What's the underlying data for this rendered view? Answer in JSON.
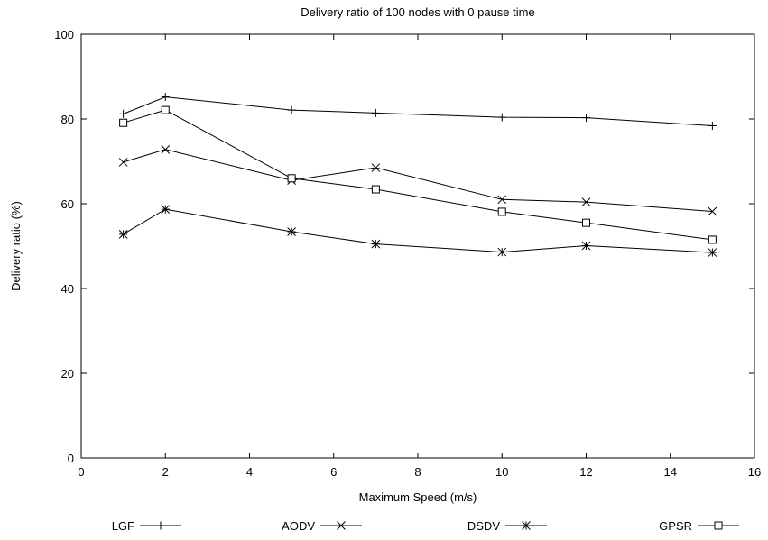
{
  "chart_data": {
    "type": "line",
    "title": "Delivery ratio of 100 nodes with 0 pause time",
    "xlabel": "Maximum Speed (m/s)",
    "ylabel": "Delivery ratio (%)",
    "xlim": [
      0,
      16
    ],
    "ylim": [
      0,
      100
    ],
    "xticks": [
      0,
      2,
      4,
      6,
      8,
      10,
      12,
      14,
      16
    ],
    "yticks": [
      0,
      20,
      40,
      60,
      80,
      100
    ],
    "grid": false,
    "legend_position": "bottom",
    "x": [
      1,
      2,
      5,
      7,
      10,
      12,
      15
    ],
    "series": [
      {
        "name": "LGF",
        "marker": "plus",
        "values": [
          81.2,
          85.2,
          82.1,
          81.4,
          80.4,
          80.3,
          78.4
        ]
      },
      {
        "name": "AODV",
        "marker": "cross",
        "values": [
          69.8,
          72.8,
          65.5,
          68.5,
          61.0,
          60.4,
          58.2
        ]
      },
      {
        "name": "DSDV",
        "marker": "star",
        "values": [
          52.8,
          58.7,
          53.4,
          50.5,
          48.6,
          50.1,
          48.5
        ]
      },
      {
        "name": "GPSR",
        "marker": "square",
        "values": [
          79.1,
          82.1,
          66.0,
          63.4,
          58.1,
          55.5,
          51.5
        ]
      }
    ]
  }
}
